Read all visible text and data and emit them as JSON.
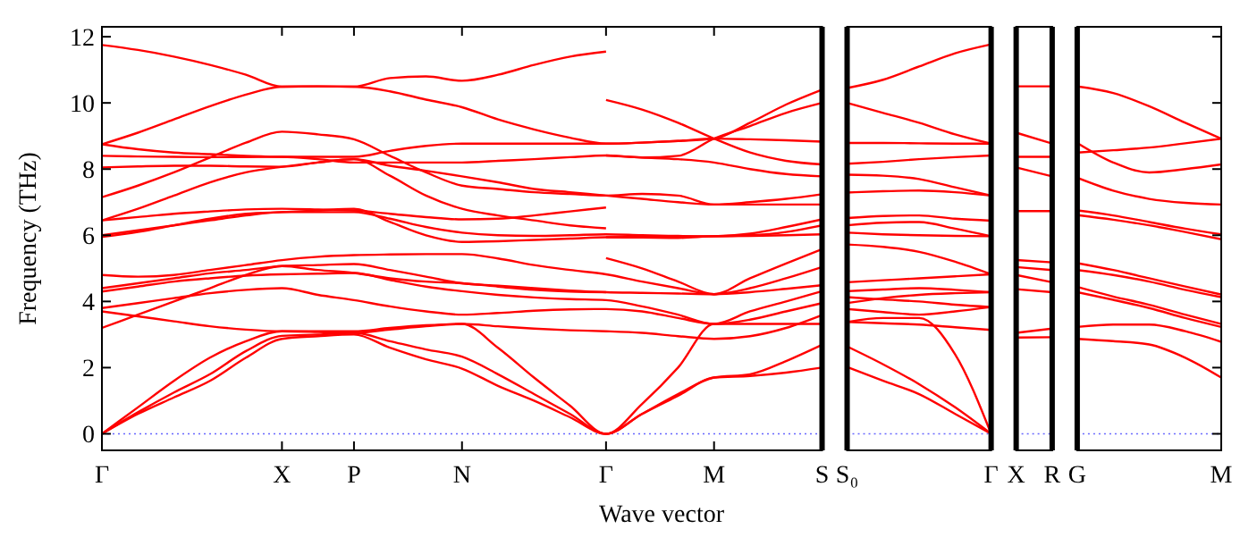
{
  "chart_data": [
    {
      "type": "line",
      "ylabel": "Frequency (THz)",
      "xlabel": "Wave vector",
      "ylim": [
        -0.5,
        12.3
      ],
      "yticks": [
        0,
        2,
        4,
        6,
        8,
        10,
        12
      ],
      "categories": [
        "Γ",
        null,
        null,
        null,
        null,
        "X",
        null,
        "P",
        null,
        null,
        "N",
        null,
        null,
        null,
        "Γ",
        null,
        null,
        "M",
        null,
        null,
        "S"
      ],
      "ref_lines": [
        {
          "axis": "y",
          "value": 0,
          "color": "#6666ff",
          "line_style": "dotted"
        }
      ],
      "series": [
        {
          "color": "#ff0000",
          "values": [
            11.75,
            11.6,
            11.4,
            11.15,
            10.85,
            10.49,
            10.5,
            10.49,
            10.75,
            10.8,
            10.67,
            10.85,
            11.15,
            11.4,
            11.55,
            null,
            null,
            null,
            null,
            null,
            null
          ]
        },
        {
          "color": "#ff0000",
          "values": [
            8.75,
            9.1,
            9.5,
            9.9,
            10.25,
            10.49,
            10.5,
            10.49,
            10.35,
            10.1,
            9.87,
            9.5,
            9.2,
            8.95,
            8.77,
            8.8,
            8.85,
            8.92,
            9.4,
            9.95,
            10.4
          ]
        },
        {
          "color": "#ff0000",
          "values": [
            8.75,
            8.6,
            8.5,
            8.45,
            8.4,
            8.37,
            8.37,
            8.37,
            8.55,
            8.7,
            8.77,
            8.77,
            8.77,
            8.77,
            8.77,
            8.8,
            8.85,
            8.92,
            8.9,
            8.87,
            8.83
          ]
        },
        {
          "color": "#ff0000",
          "values": [
            8.4,
            8.38,
            8.37,
            8.36,
            8.36,
            8.37,
            8.3,
            8.2,
            8.2,
            8.2,
            8.2,
            8.25,
            8.3,
            8.36,
            8.41,
            8.35,
            8.4,
            8.92,
            9.3,
            9.7,
            10.0
          ]
        },
        {
          "color": "#ff0000",
          "values": [
            7.15,
            7.5,
            7.9,
            8.35,
            8.8,
            9.13,
            9.05,
            8.9,
            8.4,
            7.9,
            7.5,
            7.4,
            7.3,
            7.25,
            7.2,
            7.25,
            7.2,
            6.93,
            7.0,
            7.1,
            7.24
          ]
        },
        {
          "color": "#ff0000",
          "values": [
            8.05,
            8.08,
            8.1,
            8.1,
            8.08,
            8.07,
            8.2,
            8.3,
            8.1,
            7.95,
            7.78,
            7.6,
            7.4,
            7.3,
            7.2,
            7.1,
            7.0,
            6.93,
            6.93,
            6.93,
            6.93
          ]
        },
        {
          "color": "#ff0000",
          "values": [
            6.45,
            6.8,
            7.2,
            7.6,
            7.9,
            8.07,
            8.2,
            8.3,
            7.8,
            7.2,
            6.8,
            6.6,
            6.45,
            6.3,
            6.21,
            null,
            null,
            null,
            null,
            null,
            null
          ]
        },
        {
          "color": "#ff0000",
          "values": [
            6.45,
            6.55,
            6.65,
            6.72,
            6.78,
            6.8,
            6.78,
            6.75,
            6.65,
            6.55,
            6.48,
            6.5,
            6.6,
            6.72,
            6.84,
            null,
            null,
            null,
            null,
            null,
            null
          ]
        },
        {
          "color": "#ff0000",
          "values": [
            6.0,
            6.15,
            6.3,
            6.45,
            6.6,
            6.7,
            6.7,
            6.7,
            6.5,
            6.25,
            6.08,
            6.0,
            5.98,
            6.0,
            6.03,
            6.0,
            5.98,
            5.97,
            6.0,
            6.1,
            6.3
          ]
        },
        {
          "color": "#ff0000",
          "values": [
            5.95,
            6.1,
            6.3,
            6.5,
            6.65,
            6.7,
            6.75,
            6.8,
            6.4,
            6.0,
            5.8,
            5.82,
            5.86,
            5.9,
            5.94,
            5.95,
            5.96,
            5.97,
            6.05,
            6.25,
            6.48
          ]
        },
        {
          "color": "#ff0000",
          "values": [
            4.8,
            4.75,
            4.8,
            4.95,
            5.1,
            5.25,
            5.35,
            5.4,
            5.42,
            5.43,
            5.43,
            5.3,
            5.1,
            4.95,
            4.82,
            4.6,
            4.4,
            4.22,
            4.4,
            4.7,
            5.04
          ]
        },
        {
          "color": "#ff0000",
          "values": [
            4.4,
            4.55,
            4.7,
            4.85,
            4.95,
            5.07,
            5.1,
            5.13,
            4.95,
            4.75,
            4.55,
            4.48,
            4.4,
            4.33,
            4.28,
            4.26,
            4.24,
            4.22,
            4.28,
            4.38,
            4.49
          ]
        },
        {
          "color": "#ff0000",
          "values": [
            4.3,
            4.45,
            4.6,
            4.7,
            4.78,
            4.82,
            4.84,
            4.86,
            4.65,
            4.45,
            4.31,
            4.2,
            4.12,
            4.07,
            4.04,
            3.85,
            3.6,
            3.32,
            3.7,
            4.0,
            4.31
          ]
        },
        {
          "color": "#ff0000",
          "values": [
            3.8,
            3.95,
            4.1,
            4.25,
            4.35,
            4.4,
            4.2,
            4.04,
            3.85,
            3.7,
            3.6,
            3.65,
            3.72,
            3.76,
            3.77,
            3.7,
            3.5,
            3.32,
            3.45,
            3.7,
            3.95
          ]
        },
        {
          "color": "#ff0000",
          "values": [
            3.7,
            3.55,
            3.4,
            3.25,
            3.15,
            3.1,
            3.1,
            3.1,
            3.2,
            3.28,
            3.32,
            3.25,
            3.18,
            3.13,
            3.1,
            3.05,
            2.95,
            2.87,
            2.95,
            3.2,
            3.59
          ]
        },
        {
          "color": "#ff0000",
          "values": [
            3.2,
            3.6,
            4.0,
            4.4,
            4.8,
            5.07,
            4.95,
            4.86,
            4.7,
            4.6,
            4.55,
            4.45,
            4.35,
            4.3,
            4.28,
            null,
            null,
            null,
            null,
            null,
            null
          ]
        },
        {
          "color": "#ff0000",
          "values": [
            0,
            0.8,
            1.6,
            2.3,
            2.8,
            3.1,
            3.08,
            3.05,
            3.15,
            3.25,
            3.32,
            2.6,
            1.7,
            0.85,
            0,
            0.9,
            2.0,
            3.32,
            3.32,
            3.32,
            3.32
          ]
        },
        {
          "color": "#ff0000",
          "values": [
            0,
            0.65,
            1.25,
            1.8,
            2.5,
            2.96,
            3.0,
            3.05,
            2.8,
            2.55,
            2.33,
            1.8,
            1.2,
            0.6,
            0,
            0.6,
            1.2,
            1.7,
            1.8,
            2.2,
            2.69
          ]
        },
        {
          "color": "#ff0000",
          "values": [
            0,
            0.6,
            1.1,
            1.6,
            2.3,
            2.87,
            2.95,
            3.0,
            2.6,
            2.25,
            1.97,
            1.45,
            1.0,
            0.5,
            0,
            0.6,
            1.15,
            1.7,
            1.75,
            1.85,
            2.0
          ]
        },
        {
          "color": "#ff0000",
          "values": [
            null,
            null,
            null,
            null,
            null,
            null,
            null,
            null,
            null,
            null,
            null,
            null,
            null,
            null,
            10.09,
            9.8,
            9.4,
            8.92,
            8.5,
            8.25,
            8.14
          ]
        },
        {
          "color": "#ff0000",
          "values": [
            null,
            null,
            null,
            null,
            null,
            null,
            null,
            null,
            null,
            null,
            null,
            null,
            null,
            null,
            8.41,
            8.35,
            8.3,
            8.2,
            8.0,
            7.85,
            7.78
          ]
        },
        {
          "color": "#ff0000",
          "values": [
            null,
            null,
            null,
            null,
            null,
            null,
            null,
            null,
            null,
            null,
            null,
            null,
            null,
            null,
            5.31,
            5.0,
            4.6,
            4.22,
            4.7,
            5.15,
            5.58
          ]
        },
        {
          "color": "#ff0000",
          "values": [
            null,
            null,
            null,
            null,
            null,
            null,
            null,
            null,
            null,
            null,
            null,
            null,
            null,
            null,
            5.94,
            5.93,
            5.92,
            5.97,
            5.98,
            6.0,
            6.03
          ]
        }
      ]
    },
    {
      "type": "line",
      "ylim": [
        -0.5,
        12.3
      ],
      "tick_labels": "x",
      "categories": [
        "S₀",
        null,
        null,
        null,
        "Γ"
      ],
      "ref_lines": [
        {
          "axis": "y",
          "value": 0,
          "color": "#6666ff",
          "line_style": "dotted"
        }
      ],
      "series": [
        {
          "color": "#ff0000",
          "values": [
            10.45,
            10.7,
            11.1,
            11.5,
            11.77
          ]
        },
        {
          "color": "#ff0000",
          "values": [
            10.0,
            9.7,
            9.4,
            9.05,
            8.77
          ]
        },
        {
          "color": "#ff0000",
          "values": [
            8.79,
            8.79,
            8.78,
            8.77,
            8.77
          ]
        },
        {
          "color": "#ff0000",
          "values": [
            8.16,
            8.22,
            8.3,
            8.36,
            8.41
          ]
        },
        {
          "color": "#ff0000",
          "values": [
            7.83,
            7.8,
            7.7,
            7.45,
            7.2
          ]
        },
        {
          "color": "#ff0000",
          "values": [
            7.29,
            7.33,
            7.35,
            7.3,
            7.2
          ]
        },
        {
          "color": "#ff0000",
          "values": [
            6.52,
            6.58,
            6.6,
            6.5,
            6.44
          ]
        },
        {
          "color": "#ff0000",
          "values": [
            6.3,
            6.38,
            6.4,
            6.2,
            5.97
          ]
        },
        {
          "color": "#ff0000",
          "values": [
            6.08,
            6.03,
            6.0,
            5.98,
            5.97
          ]
        },
        {
          "color": "#ff0000",
          "values": [
            5.72,
            5.65,
            5.5,
            5.2,
            4.82
          ]
        },
        {
          "color": "#ff0000",
          "values": [
            4.58,
            4.64,
            4.7,
            4.76,
            4.82
          ]
        },
        {
          "color": "#ff0000",
          "values": [
            4.31,
            4.36,
            4.4,
            4.35,
            4.28
          ]
        },
        {
          "color": "#ff0000",
          "values": [
            4.13,
            4.06,
            4.0,
            3.9,
            3.83
          ]
        },
        {
          "color": "#ff0000",
          "values": [
            3.95,
            4.1,
            4.2,
            4.25,
            4.28
          ]
        },
        {
          "color": "#ff0000",
          "values": [
            3.77,
            3.68,
            3.6,
            3.7,
            3.83
          ]
        },
        {
          "color": "#ff0000",
          "values": [
            3.38,
            3.34,
            3.3,
            3.22,
            3.14
          ]
        },
        {
          "color": "#ff0000",
          "values": [
            3.38,
            3.5,
            3.5,
            2.4,
            0
          ]
        },
        {
          "color": "#ff0000",
          "values": [
            2.64,
            2.1,
            1.5,
            0.8,
            0
          ]
        },
        {
          "color": "#ff0000",
          "values": [
            2.02,
            1.6,
            1.2,
            0.6,
            0
          ]
        }
      ]
    },
    {
      "type": "line",
      "ylim": [
        -0.5,
        12.3
      ],
      "tick_labels": "x",
      "categories": [
        "X",
        "R"
      ],
      "ref_lines": [
        {
          "axis": "y",
          "value": 0,
          "color": "#6666ff",
          "line_style": "dotted"
        }
      ],
      "series": [
        {
          "color": "#ff0000",
          "values": [
            10.5,
            10.5
          ]
        },
        {
          "color": "#ff0000",
          "values": [
            9.1,
            8.77
          ]
        },
        {
          "color": "#ff0000",
          "values": [
            8.37,
            8.37
          ]
        },
        {
          "color": "#ff0000",
          "values": [
            8.05,
            7.78
          ]
        },
        {
          "color": "#ff0000",
          "values": [
            6.73,
            6.73
          ]
        },
        {
          "color": "#ff0000",
          "values": [
            5.25,
            5.18
          ]
        },
        {
          "color": "#ff0000",
          "values": [
            5.04,
            4.95
          ]
        },
        {
          "color": "#ff0000",
          "values": [
            4.8,
            4.58
          ]
        },
        {
          "color": "#ff0000",
          "values": [
            4.37,
            4.28
          ]
        },
        {
          "color": "#ff0000",
          "values": [
            3.05,
            3.18
          ]
        },
        {
          "color": "#ff0000",
          "values": [
            2.91,
            2.92
          ]
        }
      ]
    },
    {
      "type": "line",
      "ylim": [
        -0.5,
        12.3
      ],
      "yticks": [
        0,
        2,
        4,
        6,
        8,
        10,
        12
      ],
      "tick_labels": "x",
      "categories": [
        "G",
        null,
        null,
        null,
        "M"
      ],
      "ref_lines": [
        {
          "axis": "y",
          "value": 0,
          "color": "#6666ff",
          "line_style": "dotted"
        }
      ],
      "series": [
        {
          "color": "#ff0000",
          "values": [
            10.5,
            10.3,
            9.9,
            9.4,
            8.92
          ]
        },
        {
          "color": "#ff0000",
          "values": [
            8.5,
            8.57,
            8.65,
            8.78,
            8.92
          ]
        },
        {
          "color": "#ff0000",
          "values": [
            8.79,
            8.2,
            7.9,
            8.0,
            8.14
          ]
        },
        {
          "color": "#ff0000",
          "values": [
            7.74,
            7.35,
            7.1,
            6.98,
            6.93
          ]
        },
        {
          "color": "#ff0000",
          "values": [
            6.75,
            6.6,
            6.4,
            6.2,
            6.03
          ]
        },
        {
          "color": "#ff0000",
          "values": [
            6.61,
            6.47,
            6.3,
            6.1,
            5.88
          ]
        },
        {
          "color": "#ff0000",
          "values": [
            5.16,
            4.95,
            4.7,
            4.45,
            4.21
          ]
        },
        {
          "color": "#ff0000",
          "values": [
            4.95,
            4.8,
            4.6,
            4.35,
            4.13
          ]
        },
        {
          "color": "#ff0000",
          "values": [
            4.44,
            4.15,
            3.9,
            3.6,
            3.32
          ]
        },
        {
          "color": "#ff0000",
          "values": [
            4.28,
            4.05,
            3.8,
            3.5,
            3.23
          ]
        },
        {
          "color": "#ff0000",
          "values": [
            3.23,
            3.3,
            3.3,
            3.1,
            2.78
          ]
        },
        {
          "color": "#ff0000",
          "values": [
            2.87,
            2.8,
            2.7,
            2.3,
            1.7
          ]
        }
      ]
    }
  ]
}
